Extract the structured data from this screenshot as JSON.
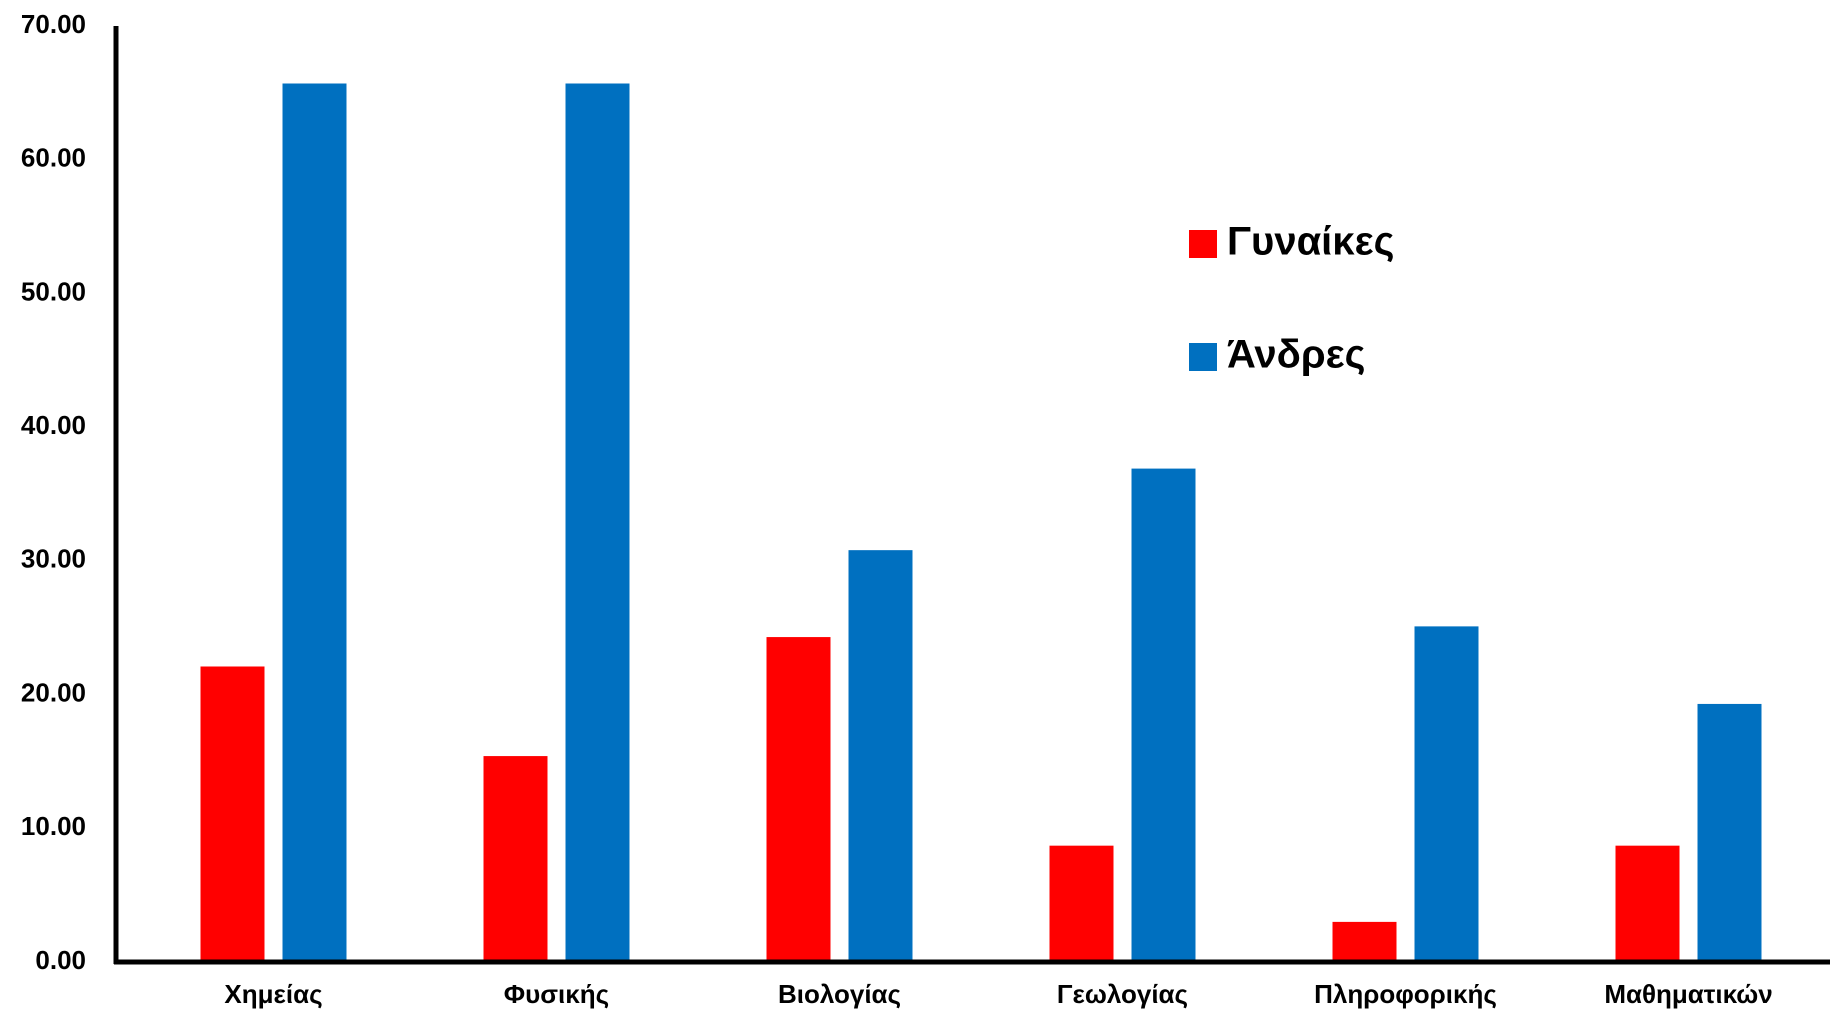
{
  "chart_data": {
    "type": "bar",
    "title": "",
    "xlabel": "",
    "ylabel": "",
    "categories": [
      "Χημείας",
      "Φυσικής",
      "Βιολογίας",
      "Γεωλογίας",
      "Πληροφορικής",
      "Μαθηματικών"
    ],
    "series": [
      {
        "name": "Γυναίκες",
        "color": "#ff0000",
        "values": [
          22.1,
          15.4,
          24.3,
          8.7,
          3.0,
          8.7
        ]
      },
      {
        "name": "Άνδρες",
        "color": "#0070c0",
        "values": [
          65.7,
          65.7,
          30.8,
          36.9,
          25.1,
          19.3
        ]
      }
    ],
    "ylim": [
      0,
      70
    ],
    "yticks": [
      "0.00",
      "10.00",
      "20.00",
      "30.00",
      "40.00",
      "50.00",
      "60.00",
      "70.00"
    ],
    "grid": false,
    "legend_position": "upper-right"
  }
}
